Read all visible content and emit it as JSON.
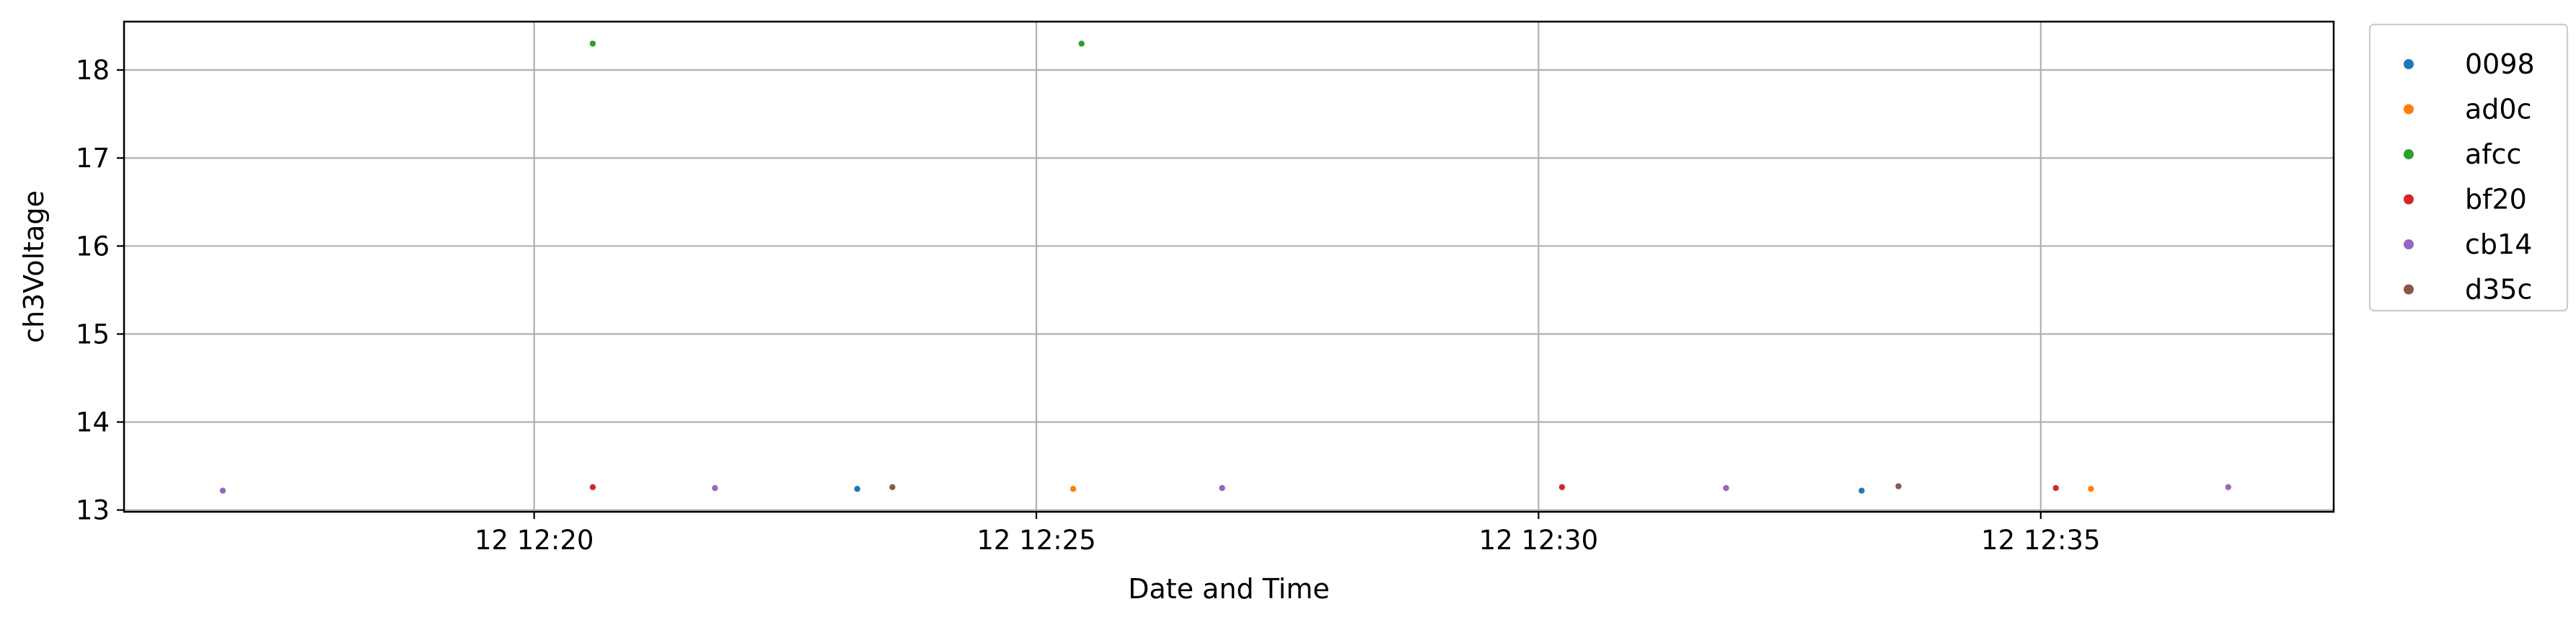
{
  "chart_data": {
    "type": "scatter",
    "xlabel": "Date and Time",
    "ylabel": "ch3Voltage",
    "x_unit": "time (12 Dec, HH:MM)",
    "xlim": [
      "12:15:55",
      "12:37:55"
    ],
    "ylim": [
      12.98,
      18.55
    ],
    "x_ticks": [
      {
        "value": "12:20",
        "label": "12 12:20"
      },
      {
        "value": "12:25",
        "label": "12 12:25"
      },
      {
        "value": "12:30",
        "label": "12 12:30"
      },
      {
        "value": "12:35",
        "label": "12 12:35"
      }
    ],
    "y_ticks": [
      13,
      14,
      15,
      16,
      17,
      18
    ],
    "grid": true,
    "legend_position": "outside-top-right",
    "series": [
      {
        "name": "0098",
        "color": "#1f77b4",
        "points": [
          {
            "x": "12:23:13",
            "y": 13.24
          },
          {
            "x": "12:33:13",
            "y": 13.22
          }
        ]
      },
      {
        "name": "ad0c",
        "color": "#ff7f0e",
        "points": [
          {
            "x": "12:25:22",
            "y": 13.24
          },
          {
            "x": "12:35:30",
            "y": 13.24
          }
        ]
      },
      {
        "name": "afcc",
        "color": "#2ca02c",
        "points": [
          {
            "x": "12:20:35",
            "y": 18.3
          },
          {
            "x": "12:25:27",
            "y": 18.3
          }
        ]
      },
      {
        "name": "bf20",
        "color": "#d62728",
        "points": [
          {
            "x": "12:20:35",
            "y": 13.26
          },
          {
            "x": "12:30:14",
            "y": 13.26
          },
          {
            "x": "12:35:09",
            "y": 13.25
          }
        ]
      },
      {
        "name": "cb14",
        "color": "#9467bd",
        "points": [
          {
            "x": "12:16:54",
            "y": 13.22
          },
          {
            "x": "12:21:48",
            "y": 13.25
          },
          {
            "x": "12:26:51",
            "y": 13.25
          },
          {
            "x": "12:31:52",
            "y": 13.25
          },
          {
            "x": "12:36:52",
            "y": 13.26
          }
        ]
      },
      {
        "name": "d35c",
        "color": "#8c564b",
        "points": [
          {
            "x": "12:23:34",
            "y": 13.26
          },
          {
            "x": "12:33:35",
            "y": 13.27
          }
        ]
      }
    ]
  }
}
